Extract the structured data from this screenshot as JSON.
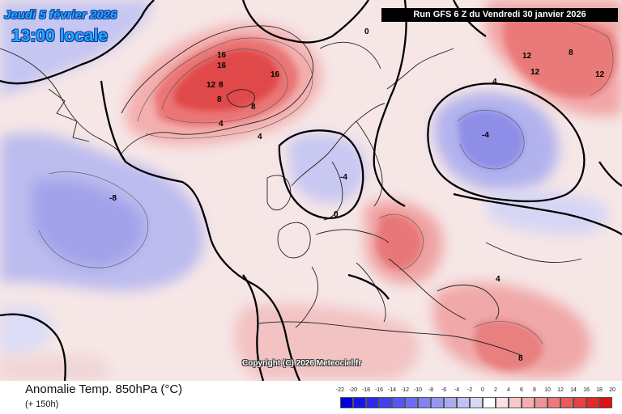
{
  "header": {
    "date": "Jeudi 5 février 2026",
    "time": "13:00 locale",
    "run": "Run GFS 6 Z du Vendredi 30 janvier 2026"
  },
  "map": {
    "copyright": "Copyright (C) 2026 Meteociel.fr"
  },
  "footer": {
    "title": "Anomalie Temp. 850hPa (°C)",
    "subtitle": "(+ 150h)"
  },
  "legend": {
    "ticks": [
      "-22",
      "-20",
      "-18",
      "-16",
      "-14",
      "-12",
      "-10",
      "-8",
      "-6",
      "-4",
      "-2",
      "0",
      "2",
      "4",
      "6",
      "8",
      "10",
      "12",
      "14",
      "16",
      "18",
      "20"
    ],
    "colors": [
      "#0000d8",
      "#1414e6",
      "#2a2af0",
      "#4040f4",
      "#5656f6",
      "#6c6cf6",
      "#8282f4",
      "#9696f2",
      "#aaaaf0",
      "#c0c0f2",
      "#d8d8f6",
      "#ffffff",
      "#fae0e0",
      "#f8c8c8",
      "#f5aeae",
      "#f29494",
      "#ee7878",
      "#ea5c5c",
      "#e64242",
      "#e22a2a",
      "#de1212"
    ]
  },
  "contour_labels": [
    "16",
    "16",
    "16",
    "12",
    "8",
    "8",
    "8",
    "4",
    "4",
    "0",
    "-4",
    "-8",
    "12",
    "12",
    "12",
    "8",
    "4",
    "-4",
    "0",
    "4",
    "8"
  ]
}
